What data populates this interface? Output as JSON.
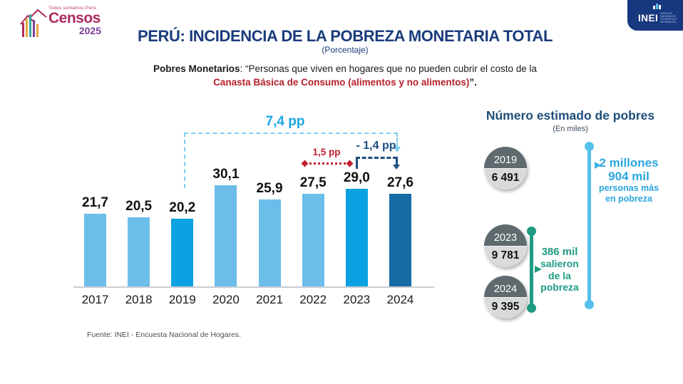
{
  "header": {
    "censos": {
      "tagline": "Todos sumamos Perú",
      "name": "Censos",
      "year": "2025"
    },
    "inei": {
      "name": "INEI",
      "org_lines": [
        "INSTITUTO",
        "NACIONAL DE",
        "ESTADÍSTICA E",
        "INFORMÁTICA"
      ]
    }
  },
  "title": {
    "main": "PERÚ: INCIDENCIA DE LA POBREZA MONETARIA TOTAL",
    "subtitle": "(Porcentaje)"
  },
  "definition": {
    "term": "Pobres Monetarios",
    "after_term": ": “Personas que viven en hogares que no pueden cubrir el costo de la",
    "highlight": "Canasta Básica de Consumo (alimentos y no alimentos)",
    "suffix": "”."
  },
  "chart_data": {
    "type": "bar",
    "title": "PERÚ: INCIDENCIA DE LA POBREZA MONETARIA TOTAL (Porcentaje)",
    "categories": [
      "2017",
      "2018",
      "2019",
      "2020",
      "2021",
      "2022",
      "2023",
      "2024"
    ],
    "values": [
      21.7,
      20.5,
      20.2,
      30.1,
      25.9,
      27.5,
      29.0,
      27.6
    ],
    "value_labels": [
      "21,7",
      "20,5",
      "20,2",
      "30,1",
      "25,9",
      "27,5",
      "29,0",
      "27,6"
    ],
    "xlabel": "",
    "ylabel": "",
    "ylim": [
      0,
      32
    ],
    "grid": false,
    "legend": false,
    "bar_colors": [
      "#6CBDE9",
      "#6CBDE9",
      "#0AA2E2",
      "#6CBDE9",
      "#6CBDE9",
      "#6CBDE9",
      "#0AA2E2",
      "#176BA5"
    ],
    "annotations": [
      {
        "label": "7,4 pp",
        "from": "2019",
        "to": "2024",
        "color": "#1BA7E2",
        "style": "dashed-bracket"
      },
      {
        "label": "1,5 pp",
        "from": "2022",
        "to": "2023",
        "color": "#C01E2E",
        "style": "dotted-double-arrow"
      },
      {
        "label": "- 1,4 pp",
        "from": "2023",
        "to": "2024",
        "color": "#1C4E80",
        "style": "dashed-bracket-down"
      }
    ]
  },
  "right_panel": {
    "title": "Número estimado de pobres",
    "subtitle": "(En miles)",
    "badges": [
      {
        "year": "2019",
        "value": "6 491"
      },
      {
        "year": "2023",
        "value": "9 781"
      },
      {
        "year": "2024",
        "value": "9 395"
      }
    ],
    "callout_blue": {
      "line1": "2 millones",
      "line2": "904 mil",
      "line3": "personas más",
      "line4": "en pobreza",
      "color": "#2BA6DE"
    },
    "callout_teal": {
      "line1": "386 mil",
      "line2": "salieron",
      "line3": "de la",
      "line4": "pobreza",
      "color": "#1E9B82"
    }
  },
  "footer": {
    "source": "Fuente: INEI - Encuesta Nacional de Hogares."
  }
}
